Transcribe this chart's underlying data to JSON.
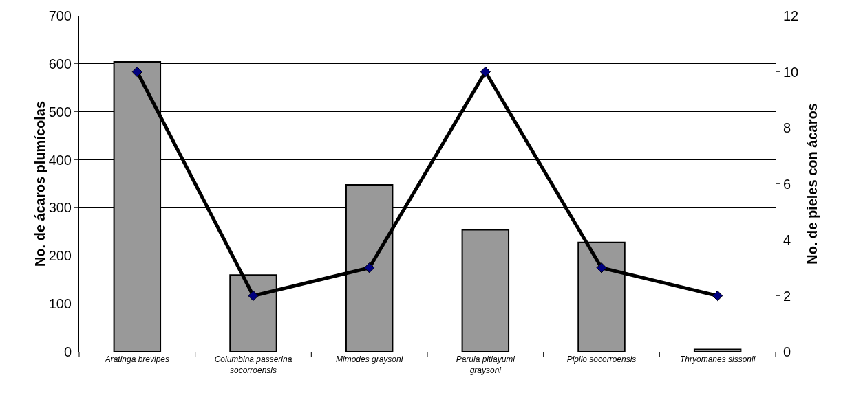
{
  "chart_data": {
    "type": "bar",
    "categories": [
      "Aratinga brevipes",
      "Columbina passerina socorroensis",
      "Mimodes graysoni",
      "Parula pitiayumi graysoni",
      "Pipilo socorroensis",
      "Thryomanes sissonii"
    ],
    "series": [
      {
        "color": "#999999",
        "values": [
          604,
          160,
          348,
          254,
          228,
          5
        ]
      },
      {
        "type": "line",
        "axis": "y2",
        "color": "#000000",
        "marker": "diamond",
        "line_style": "solid",
        "values": [
          10,
          2,
          3,
          10,
          3,
          2
        ]
      }
    ],
    "ylabel": "No. de ácaros plumícolas",
    "y2label": "No. de pieles con ácaros",
    "ylim": [
      0,
      700
    ],
    "yticks": [
      0,
      100,
      200,
      300,
      400,
      500,
      600,
      700
    ],
    "y2lim": [
      0,
      12
    ],
    "y2ticks": [
      0,
      2,
      4,
      6,
      8,
      10,
      12
    ],
    "grid": "y",
    "legend": false
  }
}
